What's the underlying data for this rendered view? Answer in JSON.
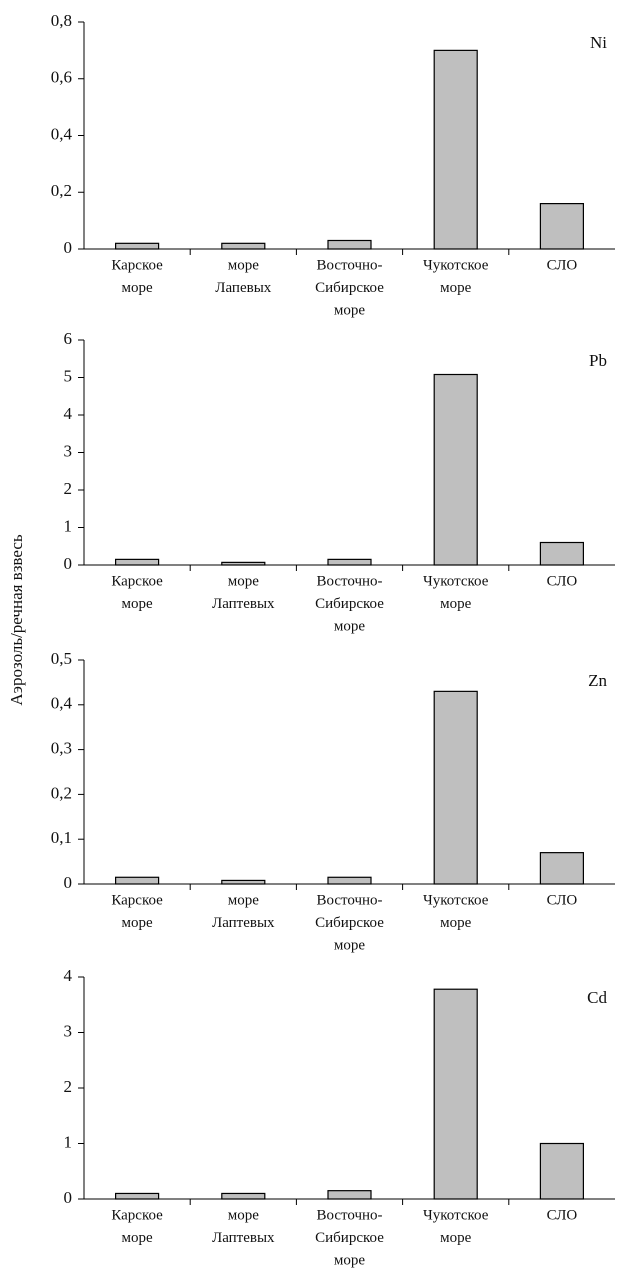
{
  "y_label": "Аэрозоль/речная взвесь",
  "chart_data": [
    {
      "type": "bar",
      "label": "Ni",
      "categories": [
        [
          "Карское",
          "море"
        ],
        [
          "море",
          "Лапевых"
        ],
        [
          "Восточно-",
          "Сибирское",
          "море"
        ],
        [
          "Чукотское",
          "море"
        ],
        [
          "СЛО"
        ]
      ],
      "values": [
        0.02,
        0.02,
        0.03,
        0.7,
        0.16
      ],
      "color": "#bfbfbf",
      "ylim": [
        0,
        0.8
      ],
      "yticks": [
        0,
        {
          "value": 0.2,
          "label": "0,2"
        },
        {
          "value": 0.4,
          "label": "0,4"
        },
        {
          "value": 0.6,
          "label": "0,6"
        },
        {
          "value": 0.8,
          "label": "0,8"
        }
      ]
    },
    {
      "type": "bar",
      "label": "Pb",
      "categories": [
        [
          "Карское",
          "море"
        ],
        [
          "море",
          "Лаптевых"
        ],
        [
          "Восточно-",
          "Сибирское",
          "море"
        ],
        [
          "Чукотское",
          "море"
        ],
        [
          "СЛО"
        ]
      ],
      "values": [
        0.15,
        0.07,
        0.15,
        5.08,
        0.6
      ],
      "color": "#bfbfbf",
      "ylim": [
        0,
        6
      ],
      "yticks": [
        0,
        1,
        2,
        3,
        4,
        5,
        6
      ]
    },
    {
      "type": "bar",
      "label": "Zn",
      "categories": [
        [
          "Карское",
          "море"
        ],
        [
          "море",
          "Лаптевых"
        ],
        [
          "Восточно-",
          "Сибирское",
          "море"
        ],
        [
          "Чукотское",
          "море"
        ],
        [
          "СЛО"
        ]
      ],
      "values": [
        0.015,
        0.008,
        0.015,
        0.43,
        0.07
      ],
      "color": "#bfbfbf",
      "ylim": [
        0,
        0.5
      ],
      "yticks": [
        0,
        {
          "value": 0.1,
          "label": "0,1"
        },
        {
          "value": 0.2,
          "label": "0,2"
        },
        {
          "value": 0.3,
          "label": "0,3"
        },
        {
          "value": 0.4,
          "label": "0,4"
        },
        {
          "value": 0.5,
          "label": "0,5"
        }
      ]
    },
    {
      "type": "bar",
      "label": "Cd",
      "categories": [
        [
          "Карское",
          "море"
        ],
        [
          "море",
          "Лаптевых"
        ],
        [
          "Восточно-",
          "Сибирское",
          "море"
        ],
        [
          "Чукотское",
          "море"
        ],
        [
          "СЛО"
        ]
      ],
      "values": [
        0.1,
        0.1,
        0.15,
        3.78,
        1.0
      ],
      "color": "#bfbfbf",
      "ylim": [
        0,
        4
      ],
      "yticks": [
        0,
        1,
        2,
        3,
        4
      ]
    }
  ]
}
